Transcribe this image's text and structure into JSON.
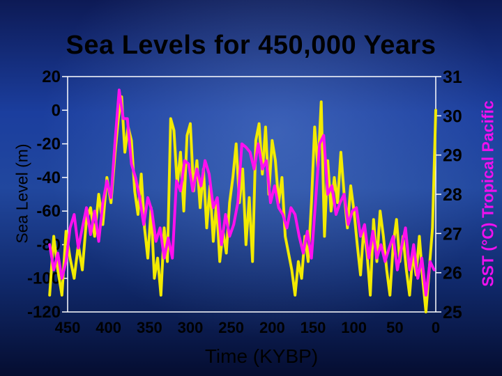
{
  "chart_data": {
    "type": "line",
    "title": "Sea Levels for 450,000 Years",
    "xlabel": "Time (KYBP)",
    "ylabel": "Sea Level (m)",
    "y2label": "SST (°C) Tropical Pacific",
    "x_ticks": [
      "450",
      "400",
      "350",
      "300",
      "250",
      "200",
      "150",
      "100",
      "50",
      "0"
    ],
    "y_ticks": [
      "20",
      "0",
      "-20",
      "-40",
      "-60",
      "-80",
      "-100",
      "-120"
    ],
    "y2_ticks": [
      "31",
      "30",
      "29",
      "28",
      "27",
      "26",
      "25"
    ],
    "xlim": [
      450,
      0
    ],
    "ylim": [
      -120,
      20
    ],
    "y2lim": [
      25,
      31
    ],
    "series": [
      {
        "color": "#f2ea00",
        "axis": "left",
        "x": [
          472,
          467,
          462,
          457,
          452,
          447,
          442,
          437,
          432,
          427,
          422,
          417,
          412,
          407,
          402,
          397,
          392,
          388,
          384,
          380,
          376,
          372,
          368,
          364,
          360,
          356,
          352,
          348,
          344,
          340,
          336,
          332,
          328,
          324,
          320,
          316,
          312,
          308,
          304,
          300,
          296,
          292,
          288,
          284,
          280,
          276,
          272,
          268,
          264,
          260,
          256,
          252,
          248,
          244,
          240,
          236,
          232,
          228,
          224,
          220,
          216,
          212,
          208,
          204,
          200,
          196,
          192,
          188,
          184,
          180,
          176,
          172,
          168,
          164,
          160,
          156,
          152,
          148,
          144,
          140,
          136,
          132,
          128,
          124,
          120,
          116,
          112,
          108,
          104,
          100,
          96,
          92,
          88,
          84,
          80,
          76,
          72,
          68,
          64,
          60,
          56,
          52,
          48,
          44,
          40,
          36,
          32,
          28,
          24,
          20,
          16,
          12,
          8,
          4,
          0
        ],
        "values": [
          -110,
          -75,
          -95,
          -110,
          -72,
          -88,
          -100,
          -80,
          -95,
          -65,
          -58,
          -75,
          -50,
          -68,
          -40,
          -55,
          -25,
          -5,
          8,
          -25,
          -10,
          -18,
          -48,
          -62,
          -38,
          -70,
          -88,
          -58,
          -100,
          -88,
          -110,
          -70,
          -90,
          -5,
          -12,
          -45,
          -25,
          -60,
          -15,
          -8,
          -48,
          -30,
          -58,
          -35,
          -70,
          -45,
          -78,
          -55,
          -90,
          -72,
          -85,
          -55,
          -40,
          -20,
          -55,
          -35,
          -80,
          -52,
          -90,
          -18,
          -8,
          -38,
          -10,
          -50,
          -18,
          -30,
          -55,
          -40,
          -75,
          -85,
          -95,
          -110,
          -90,
          -100,
          -75,
          -90,
          -55,
          -10,
          -35,
          5,
          -75,
          -30,
          -60,
          -40,
          -55,
          -25,
          -50,
          -70,
          -45,
          -60,
          -80,
          -98,
          -70,
          -85,
          -110,
          -65,
          -90,
          -60,
          -75,
          -95,
          -110,
          -80,
          -65,
          -90,
          -75,
          -95,
          -110,
          -85,
          -98,
          -75,
          -100,
          -120,
          -95,
          -70,
          0
        ]
      },
      {
        "color": "#ff10ee",
        "axis": "left",
        "x": [
          472,
          467,
          462,
          457,
          452,
          447,
          442,
          437,
          432,
          427,
          422,
          417,
          412,
          407,
          402,
          397,
          392,
          387,
          382,
          377,
          372,
          367,
          362,
          357,
          352,
          347,
          342,
          337,
          332,
          327,
          322,
          317,
          312,
          307,
          302,
          297,
          292,
          287,
          282,
          277,
          272,
          267,
          262,
          257,
          252,
          247,
          242,
          237,
          232,
          227,
          222,
          217,
          212,
          207,
          202,
          197,
          192,
          187,
          182,
          177,
          172,
          167,
          162,
          157,
          152,
          147,
          142,
          137,
          132,
          127,
          122,
          117,
          112,
          107,
          102,
          97,
          92,
          87,
          82,
          77,
          72,
          67,
          62,
          57,
          52,
          47,
          42,
          37,
          32,
          27,
          22,
          17,
          12,
          7,
          2
        ],
        "values": [
          -80,
          -95,
          -85,
          -100,
          -90,
          -70,
          -62,
          -82,
          -70,
          -58,
          -74,
          -60,
          -78,
          -55,
          -42,
          -52,
          -18,
          12,
          -5,
          -5,
          -32,
          -40,
          -52,
          -68,
          -52,
          -60,
          -78,
          -70,
          -88,
          -76,
          -88,
          -42,
          -48,
          -30,
          -32,
          -48,
          -35,
          -45,
          -30,
          -38,
          -58,
          -52,
          -80,
          -62,
          -75,
          -68,
          -55,
          -20,
          -22,
          -25,
          -35,
          -20,
          -35,
          -30,
          -55,
          -45,
          -58,
          -62,
          -70,
          -58,
          -62,
          -75,
          -85,
          -72,
          -88,
          -55,
          -20,
          -15,
          -50,
          -45,
          -62,
          -55,
          -50,
          -68,
          -60,
          -58,
          -75,
          -68,
          -88,
          -72,
          -88,
          -80,
          -90,
          -82,
          -75,
          -95,
          -82,
          -70,
          -95,
          -80,
          -100,
          -88,
          -110,
          -90,
          -95
        ]
      }
    ]
  }
}
